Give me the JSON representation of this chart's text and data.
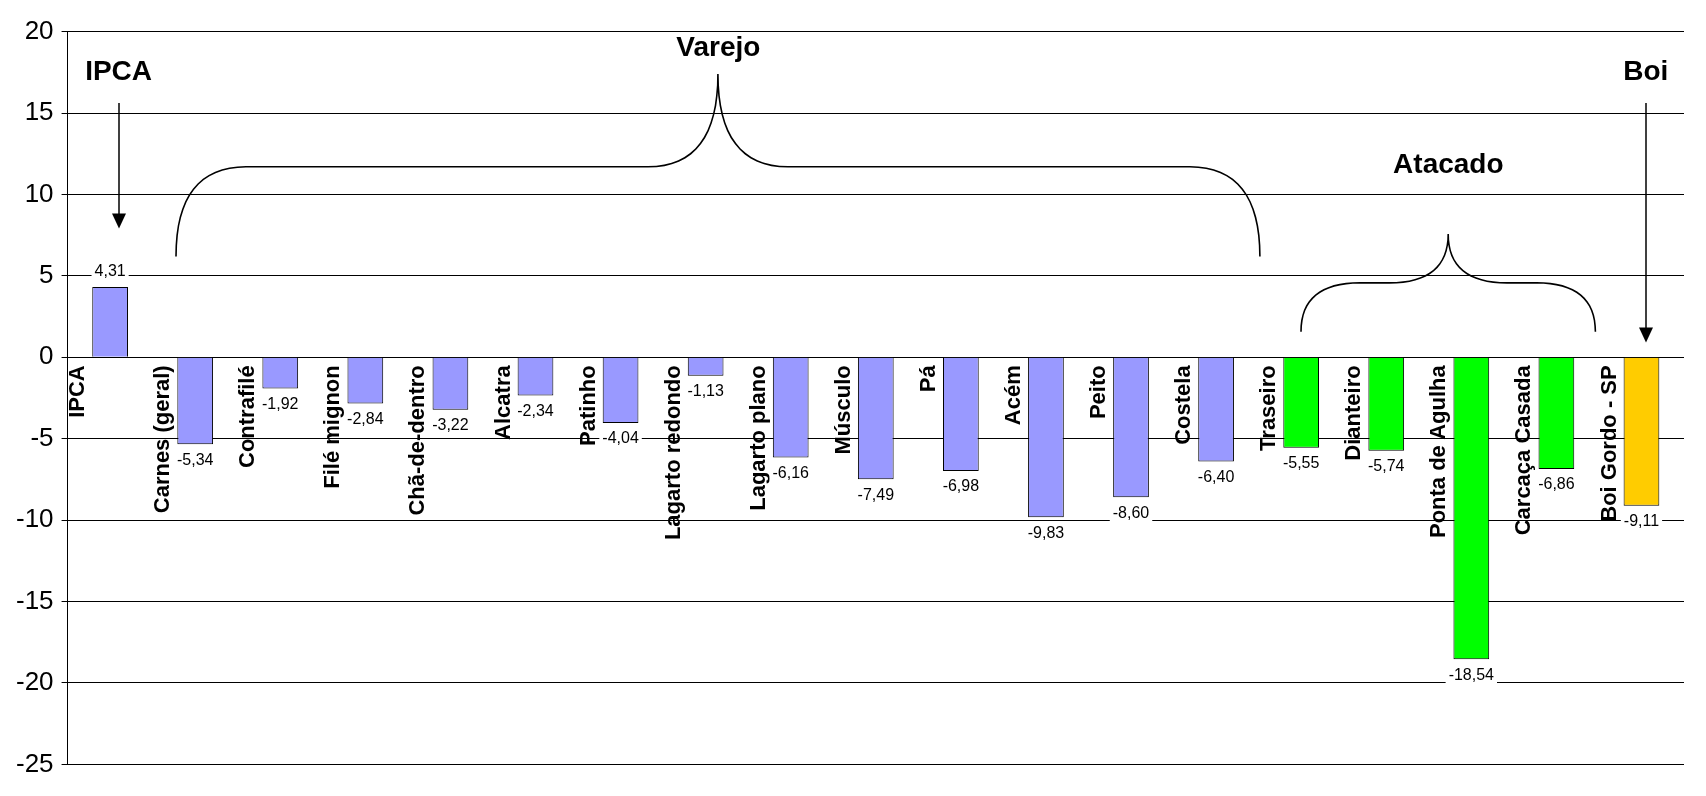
{
  "chart_data": {
    "type": "bar",
    "categories": [
      "IPCA",
      "Carnes (geral)",
      "Contrafilé",
      "Filé mignon",
      "Chã-de-dentro",
      "Alcatra",
      "Patinho",
      "Lagarto redondo",
      "Lagarto plano",
      "Músculo",
      "Pá",
      "Acém",
      "Peito",
      "Costela",
      "Traseiro",
      "Dianteiro",
      "Ponta de Agulha",
      "Carcaça Casada",
      "Boi Gordo - SP"
    ],
    "values": [
      4.31,
      -5.34,
      -1.92,
      -2.84,
      -3.22,
      -2.34,
      -4.04,
      -1.13,
      -6.16,
      -7.49,
      -6.98,
      -9.83,
      -8.6,
      -6.4,
      -5.55,
      -5.74,
      -18.54,
      -6.86,
      -9.11
    ],
    "value_labels": [
      "4,31",
      "-5,34",
      "-1,92",
      "-2,84",
      "-3,22",
      "-2,34",
      "-4,04",
      "-1,13",
      "-6,16",
      "-7,49",
      "-6,98",
      "-9,83",
      "-8,60",
      "-6,40",
      "-5,55",
      "-5,74",
      "-18,54",
      "-6,86",
      "-9,11"
    ],
    "colors": [
      "#9999ff",
      "#9999ff",
      "#9999ff",
      "#9999ff",
      "#9999ff",
      "#9999ff",
      "#9999ff",
      "#9999ff",
      "#9999ff",
      "#9999ff",
      "#9999ff",
      "#9999ff",
      "#9999ff",
      "#9999ff",
      "#00ff00",
      "#00ff00",
      "#00ff00",
      "#00ff00",
      "#ffcc00"
    ],
    "ylim": [
      -25,
      20
    ],
    "yticks": [
      -25,
      -20,
      -15,
      -10,
      -5,
      0,
      5,
      10,
      15,
      20
    ],
    "grid": "y",
    "annotations": [
      "IPCA",
      "Varejo",
      "Atacado",
      "Boi"
    ]
  }
}
